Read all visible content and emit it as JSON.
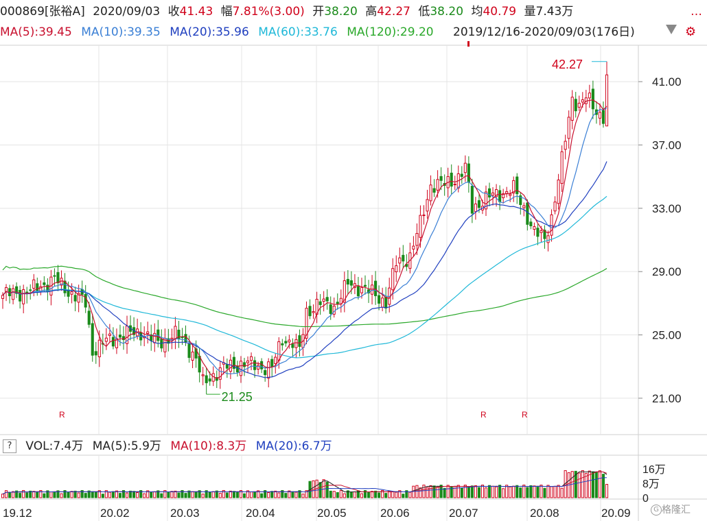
{
  "header": {
    "code": "000869[张裕A]",
    "date": "2020/09/03",
    "close_label": "收",
    "close_value": "41.43",
    "change_label": "幅",
    "change_value": "7.81%(3.00)",
    "open_label": "开",
    "open_value": "38.20",
    "high_label": "高",
    "high_value": "42.27",
    "low_label": "低",
    "low_value": "38.20",
    "avg_label": "均",
    "avg_value": "40.79",
    "volume_label": "量",
    "volume_value": "7.43万",
    "more_icon": "dots-icon"
  },
  "ma_legend": {
    "ma5": "MA(5):39.45",
    "ma10": "MA(10):39.35",
    "ma20": "MA(20):35.96",
    "ma60": "MA(60):33.76",
    "ma120": "MA(120):29.20",
    "range": "2019/12/16-2020/09/03(176日)",
    "dropdown_icon": "triangle-down-icon",
    "settings_icon": "gear-icon"
  },
  "vol_legend": {
    "help": "?",
    "vol": "VOL:7.4万",
    "ma5": "MA(5):5.9万",
    "ma10": "MA(10):8.3万",
    "ma20": "MA(20):6.7万"
  },
  "colors": {
    "up": "#d0021b",
    "down": "#1a8a1a",
    "ma5": "#c8102e",
    "ma10": "#3a7fd5",
    "ma20": "#1f3fbf",
    "ma60": "#1fb8d8",
    "ma120": "#2aa82a",
    "grid": "#e4e4e4"
  },
  "watermark": "格隆汇",
  "chart_data": {
    "type": "candlestick",
    "price_axis_ticks": [
      "41.00",
      "37.00",
      "33.00",
      "29.00",
      "25.00",
      "21.00"
    ],
    "price_range": [
      18.7,
      43.3
    ],
    "volume_axis_ticks": [
      "16万",
      "8万",
      "0"
    ],
    "volume_max": 22,
    "x_tick_labels": [
      "19.12",
      "20.02",
      "20.03",
      "20.04",
      "20.05",
      "20.06",
      "20.07",
      "20.08",
      "20.09"
    ],
    "annotations": {
      "high": "42.27",
      "low": "21.25",
      "markers": [
        "R",
        "R",
        "R"
      ]
    },
    "anchors": [
      [
        0,
        27.5
      ],
      [
        8,
        27.8
      ],
      [
        15,
        28.5
      ],
      [
        20,
        27.6
      ],
      [
        24,
        27.0
      ],
      [
        26,
        24.0
      ],
      [
        30,
        24.6
      ],
      [
        35,
        25.0
      ],
      [
        40,
        25.2
      ],
      [
        45,
        24.5
      ],
      [
        50,
        25.0
      ],
      [
        53,
        24.5
      ],
      [
        56,
        23.5
      ],
      [
        58,
        21.9
      ],
      [
        61,
        22.5
      ],
      [
        65,
        23.0
      ],
      [
        70,
        23.2
      ],
      [
        75,
        23.0
      ],
      [
        78,
        22.9
      ],
      [
        81,
        24.8
      ],
      [
        84,
        24.5
      ],
      [
        86,
        24.0
      ],
      [
        88,
        26.5
      ],
      [
        92,
        27.0
      ],
      [
        96,
        26.8
      ],
      [
        100,
        28.2
      ],
      [
        104,
        28.0
      ],
      [
        108,
        27.5
      ],
      [
        111,
        27.1
      ],
      [
        114,
        29.5
      ],
      [
        118,
        30.0
      ],
      [
        121,
        32.0
      ],
      [
        124,
        34.5
      ],
      [
        128,
        34.5
      ],
      [
        132,
        35.0
      ],
      [
        134,
        35.5
      ],
      [
        136,
        33.0
      ],
      [
        139,
        33.5
      ],
      [
        142,
        33.8
      ],
      [
        145,
        34.0
      ],
      [
        148,
        34.2
      ],
      [
        151,
        33.0
      ],
      [
        154,
        31.5
      ],
      [
        157,
        31.0
      ],
      [
        159,
        32.5
      ],
      [
        162,
        36.0
      ],
      [
        165,
        40.0
      ],
      [
        167,
        39.5
      ],
      [
        169,
        40.0
      ],
      [
        172,
        39.2
      ],
      [
        174,
        38.8
      ],
      [
        175,
        41.43
      ]
    ],
    "ma_endpoints": {
      "ma5": 39.45,
      "ma10": 39.35,
      "ma20": 35.96,
      "ma60": 33.76,
      "ma120": 29.2
    },
    "volume_ma": {
      "ma5": 5.9,
      "ma10": 8.3,
      "ma20": 6.7
    },
    "last_volume": 7.4
  }
}
